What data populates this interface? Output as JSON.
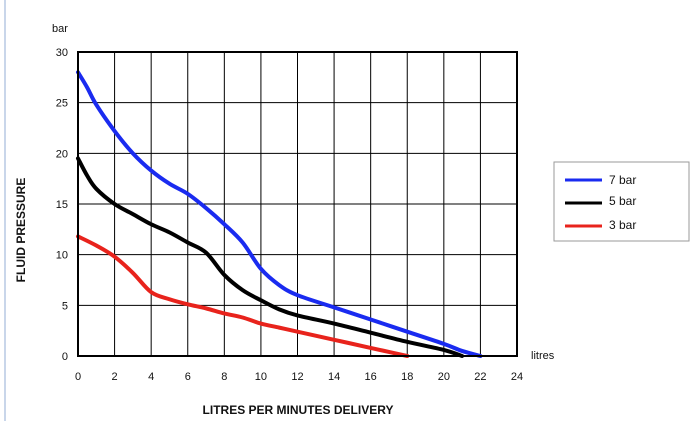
{
  "chart_data": {
    "type": "line",
    "title": "",
    "xlabel": "LITRES PER MINUTES DELIVERY",
    "ylabel": "FLUID PRESSURE",
    "x_unit": "litres",
    "y_unit": "bar",
    "xlim": [
      0,
      24
    ],
    "ylim": [
      0,
      30
    ],
    "x_ticks": [
      0,
      2,
      4,
      6,
      8,
      10,
      12,
      14,
      16,
      18,
      20,
      22,
      24
    ],
    "y_ticks": [
      0,
      5,
      10,
      15,
      20,
      25,
      30
    ],
    "grid": true,
    "legend_position": "right",
    "series": [
      {
        "name": "7 bar",
        "color": "#1a2bf0",
        "points": [
          [
            0,
            28
          ],
          [
            0.5,
            26.5
          ],
          [
            1,
            24.8
          ],
          [
            2,
            22.2
          ],
          [
            3,
            20
          ],
          [
            4,
            18.3
          ],
          [
            5,
            17
          ],
          [
            6,
            16
          ],
          [
            7,
            14.6
          ],
          [
            8,
            13
          ],
          [
            9,
            11.2
          ],
          [
            10,
            8.6
          ],
          [
            11,
            7
          ],
          [
            12,
            6
          ],
          [
            14,
            4.8
          ],
          [
            16,
            3.6
          ],
          [
            18,
            2.4
          ],
          [
            20,
            1.2
          ],
          [
            21,
            0.5
          ],
          [
            22,
            0
          ]
        ]
      },
      {
        "name": "5 bar",
        "color": "#000000",
        "points": [
          [
            0,
            19.5
          ],
          [
            0.5,
            17.8
          ],
          [
            1,
            16.5
          ],
          [
            2,
            15
          ],
          [
            3,
            14
          ],
          [
            4,
            13
          ],
          [
            5,
            12.2
          ],
          [
            6,
            11.2
          ],
          [
            7,
            10.2
          ],
          [
            8,
            8
          ],
          [
            9,
            6.5
          ],
          [
            10,
            5.5
          ],
          [
            11,
            4.6
          ],
          [
            12,
            4
          ],
          [
            14,
            3.2
          ],
          [
            16,
            2.3
          ],
          [
            18,
            1.4
          ],
          [
            20,
            0.6
          ],
          [
            21,
            0
          ]
        ]
      },
      {
        "name": "3 bar",
        "color": "#e8231c",
        "points": [
          [
            0,
            11.8
          ],
          [
            1,
            10.9
          ],
          [
            2,
            9.8
          ],
          [
            3,
            8.2
          ],
          [
            4,
            6.3
          ],
          [
            5,
            5.6
          ],
          [
            6,
            5.1
          ],
          [
            7,
            4.7
          ],
          [
            8,
            4.2
          ],
          [
            9,
            3.8
          ],
          [
            10,
            3.2
          ],
          [
            11,
            2.8
          ],
          [
            12,
            2.4
          ],
          [
            14,
            1.6
          ],
          [
            16,
            0.8
          ],
          [
            17,
            0.4
          ],
          [
            18,
            0
          ]
        ]
      }
    ]
  }
}
